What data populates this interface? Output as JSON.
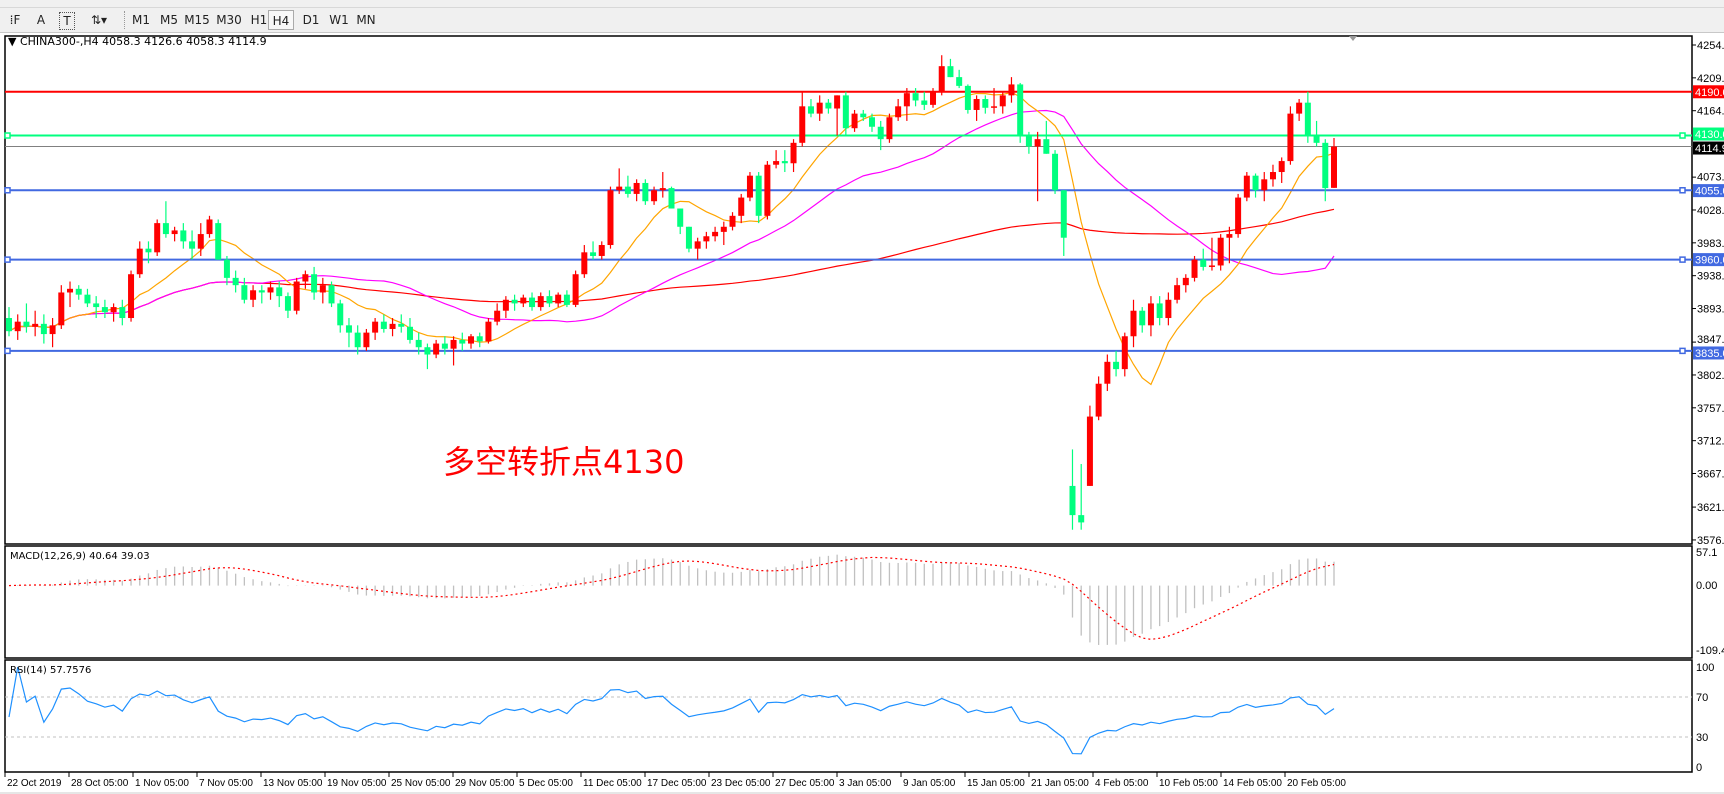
{
  "toolbar": {
    "icons": [
      "grid-f-icon",
      "text-a-icon",
      "text-label-icon",
      "arrows-icon"
    ],
    "timeframes": [
      "M1",
      "M5",
      "M15",
      "M30",
      "H1",
      "H4",
      "D1",
      "W1",
      "MN"
    ],
    "selected_timeframe": "H4"
  },
  "chart": {
    "title": "CHINA300-,H4  4058.3 4126.6 4058.3 4114.9",
    "annotation": "多空转折点4130",
    "price_ticks": [
      "4254.0",
      "4209.0",
      "4164.0",
      "4073.0",
      "4028.0",
      "3983.0",
      "3938.0",
      "3893.0",
      "3847.0",
      "3802.0",
      "3757.0",
      "3712.0",
      "3667.0",
      "3621.0",
      "3576.0"
    ],
    "hlines": [
      {
        "price": 4190.0,
        "label": "4190.0",
        "color": "#ff0000"
      },
      {
        "price": 4130.0,
        "label": "4130.0",
        "color": "#00ff7f"
      },
      {
        "price": 4055.0,
        "label": "4055.0",
        "color": "#4169e1"
      },
      {
        "price": 3960.0,
        "label": "3960.0",
        "color": "#4169e1"
      },
      {
        "price": 3835.0,
        "label": "3835.0",
        "color": "#4169e1"
      }
    ],
    "current_price": {
      "price": 4114.9,
      "label": "4114.9"
    },
    "colors": {
      "bull": "#ff0000",
      "bear": "#00ff7f",
      "ma_fast": "#ffa500",
      "ma_mid": "#ff00ff",
      "ma_slow": "#ff0000"
    },
    "time_labels": [
      "22 Oct 2019",
      "28 Oct 05:00",
      "1 Nov 05:00",
      "7 Nov 05:00",
      "13 Nov 05:00",
      "19 Nov 05:00",
      "25 Nov 05:00",
      "29 Nov 05:00",
      "5 Dec 05:00",
      "11 Dec 05:00",
      "17 Dec 05:00",
      "23 Dec 05:00",
      "27 Dec 05:00",
      "3 Jan 05:00",
      "9 Jan 05:00",
      "15 Jan 05:00",
      "21 Jan 05:00",
      "4 Feb 05:00",
      "10 Feb 05:00",
      "14 Feb 05:00",
      "20 Feb 05:00"
    ]
  },
  "macd": {
    "label": "MACD(12,26,9) 40.64 39.03",
    "ticks": [
      "57.1",
      "0.00",
      "-109.43"
    ],
    "max": 57.1,
    "min": -109.43
  },
  "rsi": {
    "label": "RSI(14) 57.7576",
    "ticks": [
      "100",
      "70",
      "30",
      "0"
    ],
    "color": "#1e90ff"
  },
  "chart_data": {
    "type": "candlestick",
    "symbol": "CHINA300-",
    "timeframe": "H4",
    "ylim": [
      3576,
      4254
    ],
    "ohlc": [
      [
        3880,
        3895,
        3855,
        3862
      ],
      [
        3862,
        3885,
        3850,
        3875
      ],
      [
        3875,
        3900,
        3860,
        3868
      ],
      [
        3868,
        3890,
        3855,
        3872
      ],
      [
        3872,
        3885,
        3845,
        3858
      ],
      [
        3858,
        3880,
        3840,
        3870
      ],
      [
        3870,
        3925,
        3865,
        3915
      ],
      [
        3915,
        3930,
        3895,
        3920
      ],
      [
        3920,
        3925,
        3905,
        3912
      ],
      [
        3912,
        3920,
        3895,
        3900
      ],
      [
        3900,
        3910,
        3880,
        3895
      ],
      [
        3895,
        3905,
        3880,
        3888
      ],
      [
        3888,
        3900,
        3875,
        3895
      ],
      [
        3895,
        3905,
        3870,
        3880
      ],
      [
        3880,
        3945,
        3875,
        3940
      ],
      [
        3940,
        3985,
        3935,
        3975
      ],
      [
        3975,
        3985,
        3955,
        3970
      ],
      [
        3970,
        4015,
        3965,
        4010
      ],
      [
        4010,
        4040,
        3990,
        3995
      ],
      [
        3995,
        4005,
        3985,
        4000
      ],
      [
        4000,
        4010,
        3975,
        3985
      ],
      [
        3985,
        4000,
        3960,
        3975
      ],
      [
        3975,
        4010,
        3965,
        3995
      ],
      [
        3995,
        4020,
        3990,
        4015
      ],
      [
        4010,
        4015,
        3960,
        3960
      ],
      [
        3960,
        3965,
        3925,
        3935
      ],
      [
        3935,
        3945,
        3915,
        3925
      ],
      [
        3925,
        3935,
        3900,
        3905
      ],
      [
        3905,
        3925,
        3895,
        3918
      ],
      [
        3918,
        3925,
        3900,
        3915
      ],
      [
        3915,
        3930,
        3905,
        3922
      ],
      [
        3922,
        3930,
        3895,
        3910
      ],
      [
        3910,
        3915,
        3880,
        3890
      ],
      [
        3890,
        3935,
        3885,
        3930
      ],
      [
        3930,
        3945,
        3920,
        3940
      ],
      [
        3940,
        3950,
        3905,
        3915
      ],
      [
        3915,
        3935,
        3900,
        3925
      ],
      [
        3925,
        3930,
        3895,
        3900
      ],
      [
        3900,
        3905,
        3860,
        3870
      ],
      [
        3870,
        3880,
        3840,
        3860
      ],
      [
        3860,
        3870,
        3830,
        3840
      ],
      [
        3840,
        3865,
        3835,
        3860
      ],
      [
        3860,
        3880,
        3850,
        3875
      ],
      [
        3875,
        3885,
        3860,
        3865
      ],
      [
        3865,
        3880,
        3855,
        3872
      ],
      [
        3872,
        3885,
        3860,
        3868
      ],
      [
        3868,
        3880,
        3845,
        3850
      ],
      [
        3850,
        3860,
        3830,
        3840
      ],
      [
        3840,
        3845,
        3810,
        3830
      ],
      [
        3830,
        3850,
        3825,
        3845
      ],
      [
        3845,
        3855,
        3830,
        3838
      ],
      [
        3838,
        3855,
        3815,
        3850
      ],
      [
        3850,
        3860,
        3835,
        3845
      ],
      [
        3845,
        3858,
        3838,
        3855
      ],
      [
        3855,
        3860,
        3840,
        3848
      ],
      [
        3848,
        3880,
        3845,
        3875
      ],
      [
        3875,
        3900,
        3870,
        3890
      ],
      [
        3890,
        3910,
        3880,
        3905
      ],
      [
        3905,
        3912,
        3890,
        3900
      ],
      [
        3900,
        3912,
        3895,
        3908
      ],
      [
        3908,
        3915,
        3890,
        3895
      ],
      [
        3895,
        3915,
        3890,
        3910
      ],
      [
        3910,
        3918,
        3895,
        3900
      ],
      [
        3900,
        3915,
        3895,
        3912
      ],
      [
        3912,
        3918,
        3895,
        3898
      ],
      [
        3898,
        3945,
        3895,
        3940
      ],
      [
        3940,
        3980,
        3935,
        3970
      ],
      [
        3970,
        3985,
        3960,
        3965
      ],
      [
        3965,
        3985,
        3960,
        3980
      ],
      [
        3980,
        4060,
        3975,
        4055
      ],
      [
        4055,
        4085,
        4050,
        4060
      ],
      [
        4060,
        4075,
        4045,
        4050
      ],
      [
        4050,
        4070,
        4040,
        4065
      ],
      [
        4065,
        4070,
        4035,
        4040
      ],
      [
        4040,
        4060,
        4035,
        4055
      ],
      [
        4055,
        4080,
        4045,
        4058
      ],
      [
        4058,
        4060,
        4030,
        4030
      ],
      [
        4030,
        4030,
        3995,
        4005
      ],
      [
        4005,
        4005,
        3970,
        3975
      ],
      [
        3975,
        3990,
        3960,
        3985
      ],
      [
        3985,
        3998,
        3975,
        3992
      ],
      [
        3992,
        4005,
        3985,
        3998
      ],
      [
        3998,
        4012,
        3980,
        4005
      ],
      [
        4005,
        4025,
        4000,
        4020
      ],
      [
        4020,
        4050,
        4010,
        4045
      ],
      [
        4045,
        4080,
        4040,
        4075
      ],
      [
        4075,
        4080,
        4010,
        4020
      ],
      [
        4020,
        4095,
        4015,
        4090
      ],
      [
        4090,
        4110,
        4085,
        4095
      ],
      [
        4095,
        4110,
        4080,
        4092
      ],
      [
        4092,
        4125,
        4080,
        4120
      ],
      [
        4120,
        4190,
        4115,
        4170
      ],
      [
        4170,
        4180,
        4155,
        4160
      ],
      [
        4160,
        4185,
        4150,
        4175
      ],
      [
        4175,
        4180,
        4160,
        4167
      ],
      [
        4167,
        4185,
        4130,
        4185
      ],
      [
        4185,
        4190,
        4130,
        4140
      ],
      [
        4140,
        4165,
        4135,
        4160
      ],
      [
        4160,
        4165,
        4150,
        4155
      ],
      [
        4155,
        4160,
        4135,
        4142
      ],
      [
        4142,
        4150,
        4110,
        4125
      ],
      [
        4125,
        4160,
        4120,
        4155
      ],
      [
        4155,
        4180,
        4150,
        4170
      ],
      [
        4170,
        4195,
        4150,
        4188
      ],
      [
        4188,
        4195,
        4170,
        4178
      ],
      [
        4178,
        4190,
        4165,
        4172
      ],
      [
        4172,
        4195,
        4168,
        4190
      ],
      [
        4190,
        4240,
        4185,
        4225
      ],
      [
        4225,
        4235,
        4210,
        4210
      ],
      [
        4210,
        4220,
        4195,
        4198
      ],
      [
        4198,
        4200,
        4160,
        4165
      ],
      [
        4165,
        4185,
        4150,
        4180
      ],
      [
        4180,
        4185,
        4160,
        4168
      ],
      [
        4168,
        4195,
        4160,
        4170
      ],
      [
        4170,
        4190,
        4160,
        4185
      ],
      [
        4185,
        4210,
        4175,
        4200
      ],
      [
        4200,
        4202,
        4120,
        4130
      ],
      [
        4130,
        4135,
        4105,
        4115
      ],
      [
        4115,
        4135,
        4040,
        4125
      ],
      [
        4125,
        4150,
        4105,
        4105
      ],
      [
        4105,
        4110,
        4050,
        4055
      ],
      [
        4055,
        4055,
        3965,
        3990
      ],
      [
        3650,
        3700,
        3590,
        3610
      ],
      [
        3610,
        3680,
        3590,
        3600
      ],
      [
        3650,
        3760,
        3650,
        3745
      ],
      [
        3745,
        3800,
        3740,
        3790
      ],
      [
        3790,
        3830,
        3780,
        3820
      ],
      [
        3820,
        3835,
        3800,
        3810
      ],
      [
        3810,
        3860,
        3800,
        3855
      ],
      [
        3855,
        3905,
        3840,
        3890
      ],
      [
        3890,
        3895,
        3860,
        3870
      ],
      [
        3870,
        3910,
        3855,
        3900
      ],
      [
        3900,
        3910,
        3870,
        3880
      ],
      [
        3880,
        3915,
        3870,
        3905
      ],
      [
        3905,
        3935,
        3900,
        3925
      ],
      [
        3925,
        3940,
        3915,
        3935
      ],
      [
        3935,
        3965,
        3930,
        3960
      ],
      [
        3960,
        3975,
        3945,
        3950
      ],
      [
        3950,
        3990,
        3945,
        3952
      ],
      [
        3952,
        3995,
        3945,
        3990
      ],
      [
        3990,
        4005,
        3955,
        3995
      ],
      [
        3995,
        4050,
        3990,
        4045
      ],
      [
        4045,
        4080,
        4040,
        4075
      ],
      [
        4075,
        4078,
        4045,
        4055
      ],
      [
        4055,
        4080,
        4040,
        4070
      ],
      [
        4070,
        4090,
        4060,
        4080
      ],
      [
        4080,
        4100,
        4065,
        4095
      ],
      [
        4095,
        4170,
        4090,
        4160
      ],
      [
        4160,
        4180,
        4150,
        4175
      ],
      [
        4175,
        4190,
        4120,
        4130
      ],
      [
        4130,
        4150,
        4115,
        4120
      ],
      [
        4120,
        4125,
        4040,
        4058
      ],
      [
        4058.3,
        4126.6,
        4058.3,
        4114.9
      ]
    ]
  }
}
